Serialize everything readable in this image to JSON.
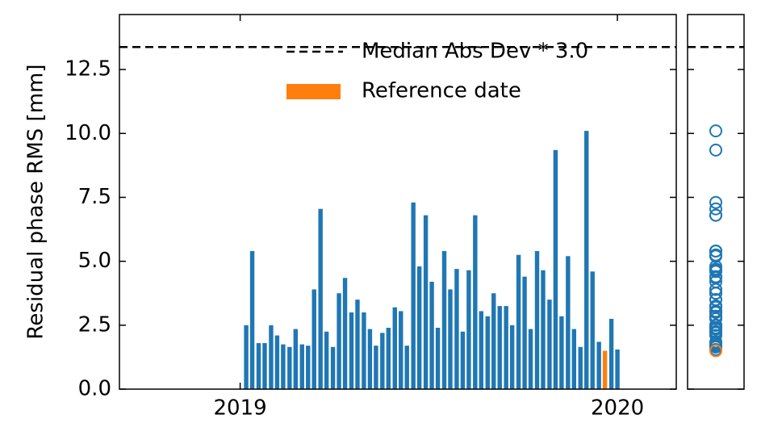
{
  "chart_data": {
    "type": "bar",
    "ylabel": "Residual phase RMS [mm]",
    "xlim": [
      2018.68,
      2020.156
    ],
    "xticks": [
      2019,
      2020
    ],
    "ylim": [
      0,
      14.65
    ],
    "yticks": [
      {
        "value": 0,
        "label": "0.0"
      },
      2.5,
      {
        "value": 5,
        "label": "5.0"
      },
      7.5,
      {
        "value": 10,
        "label": "10.0"
      },
      12.5
    ],
    "hline": {
      "name": "Median Abs Dev * 3.0",
      "value": 13.38,
      "color": "#000000"
    },
    "legend": "upper right",
    "series": [
      {
        "color": "#1f77b4",
        "x": [
          2019.016,
          2019.032,
          2019.049,
          2019.065,
          2019.082,
          2019.098,
          2019.114,
          2019.131,
          2019.147,
          2019.164,
          2019.18,
          2019.196,
          2019.213,
          2019.229,
          2019.246,
          2019.262,
          2019.278,
          2019.295,
          2019.311,
          2019.328,
          2019.344,
          2019.36,
          2019.377,
          2019.393,
          2019.41,
          2019.426,
          2019.442,
          2019.459,
          2019.475,
          2019.492,
          2019.508,
          2019.524,
          2019.541,
          2019.557,
          2019.574,
          2019.59,
          2019.606,
          2019.623,
          2019.639,
          2019.656,
          2019.672,
          2019.688,
          2019.705,
          2019.721,
          2019.738,
          2019.754,
          2019.77,
          2019.787,
          2019.803,
          2019.82,
          2019.836,
          2019.852,
          2019.869,
          2019.885,
          2019.902,
          2019.918,
          2019.934,
          2019.951,
          2019.984,
          2020.0
        ],
        "values": [
          2.5,
          5.4,
          1.8,
          1.8,
          2.5,
          2.1,
          1.75,
          1.65,
          2.35,
          1.75,
          1.7,
          3.9,
          7.05,
          2.25,
          1.65,
          3.75,
          4.35,
          3.0,
          3.5,
          3.0,
          2.35,
          1.7,
          2.2,
          2.4,
          3.2,
          3.05,
          1.7,
          7.3,
          4.8,
          6.8,
          4.2,
          2.4,
          5.4,
          3.9,
          4.7,
          2.25,
          4.65,
          6.8,
          3.05,
          2.85,
          3.75,
          3.25,
          3.25,
          2.5,
          5.25,
          4.4,
          2.35,
          5.4,
          4.65,
          3.5,
          9.35,
          2.85,
          5.2,
          2.35,
          1.65,
          10.1,
          4.6,
          1.85,
          2.75,
          1.55
        ]
      },
      {
        "name": "Reference date",
        "color": "#ff7f0e",
        "x": [
          2019.967
        ],
        "values": [
          1.5
        ]
      }
    ]
  }
}
